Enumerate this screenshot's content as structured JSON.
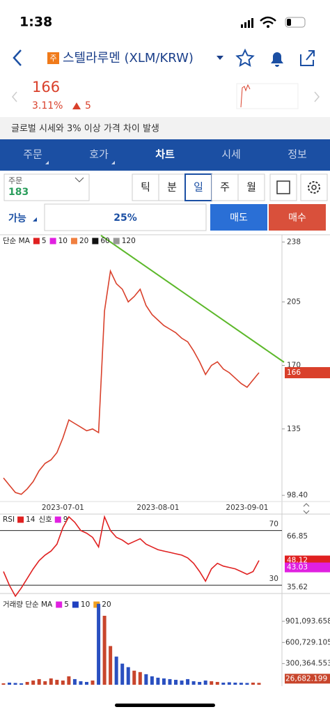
{
  "status": {
    "time": "1:38"
  },
  "header": {
    "badge": "주",
    "title": "스텔라루멘 (XLM/KRW)"
  },
  "quote": {
    "price": "166",
    "change_pct": "3.11%",
    "change": "5"
  },
  "notice": "글로벌 시세와 3% 이상 가격 차이 발생",
  "tabs": [
    "주문",
    "호가",
    "차트",
    "시세",
    "정보"
  ],
  "order_box": {
    "label": "주문",
    "value": "183"
  },
  "periods": [
    "틱",
    "분",
    "일",
    "주",
    "월"
  ],
  "trade_row": {
    "label": "가능",
    "ratio": "25%",
    "sell": "매도",
    "buy": "매수"
  },
  "chart_data": [
    {
      "type": "line",
      "legend_label": "단순 MA",
      "legend": [
        {
          "name": "5",
          "color": "#e02020"
        },
        {
          "name": "10",
          "color": "#e020e0"
        },
        {
          "name": "20",
          "color": "#f08040"
        },
        {
          "name": "60",
          "color": "#111111"
        },
        {
          "name": "120",
          "color": "#999999"
        }
      ],
      "categories": [
        null,
        null,
        null,
        null,
        null,
        null,
        null,
        null,
        null,
        null,
        "2023-07-01",
        null,
        null,
        null,
        null,
        null,
        null,
        null,
        null,
        null,
        null,
        null,
        null,
        null,
        null,
        null,
        "2023-08-01",
        null,
        null,
        null,
        null,
        null,
        null,
        null,
        null,
        null,
        null,
        null,
        null,
        null,
        null,
        "2023-09-01",
        null,
        null
      ],
      "values": [
        108,
        104,
        100,
        99,
        102,
        106,
        112,
        116,
        118,
        122,
        130,
        140,
        138,
        136,
        134,
        135,
        133,
        200,
        222,
        215,
        212,
        205,
        208,
        212,
        203,
        198,
        195,
        192,
        190,
        188,
        185,
        183,
        178,
        172,
        165,
        170,
        172,
        168,
        166,
        163,
        160,
        158,
        162,
        166
      ],
      "color": "#d9402b",
      "last_color": "#d9402b",
      "ylim": [
        95,
        242
      ],
      "yticks": [
        238,
        205,
        170,
        135,
        {
          "value": 98.4,
          "label": "98.40"
        }
      ]
    },
    {
      "type": "line",
      "legend": [
        {
          "prefix": "RSI",
          "name": "14",
          "color": "#e02020"
        },
        {
          "prefix": "신호",
          "name": "9",
          "color": "#e020e0"
        }
      ],
      "values": [
        40,
        30,
        22,
        28,
        35,
        42,
        48,
        52,
        55,
        60,
        72,
        80,
        76,
        70,
        68,
        65,
        58,
        80,
        70,
        65,
        63,
        60,
        62,
        64,
        60,
        58,
        56,
        55,
        54,
        53,
        52,
        50,
        46,
        40,
        33,
        42,
        46,
        44,
        43,
        42,
        40,
        38,
        40,
        48.12
      ],
      "color": "#e02020",
      "signal_last": 43.03,
      "signal_color": "#e020e0",
      "stats": [
        "66.85",
        "35.62"
      ],
      "ylim": [
        25,
        82
      ],
      "yticks": [
        30,
        70
      ]
    },
    {
      "type": "bar",
      "legend_label": "거래량 단순 MA",
      "legend": [
        {
          "name": "5",
          "color": "#e020e0"
        },
        {
          "name": "10",
          "color": "#2040c0"
        },
        {
          "name": "20",
          "color": "#f0a020"
        }
      ],
      "values": [
        20000,
        30000,
        25000,
        20000,
        40000,
        60000,
        80000,
        50000,
        90000,
        70000,
        60000,
        120000,
        80000,
        50000,
        40000,
        60000,
        1150000,
        980000,
        550000,
        400000,
        300000,
        250000,
        200000,
        180000,
        150000,
        120000,
        100000,
        90000,
        80000,
        70000,
        60000,
        80000,
        50000,
        40000,
        60000,
        50000,
        40000,
        30000,
        35000,
        30000,
        28000,
        25000,
        30000,
        26682.199
      ],
      "up_color": "#c8452c",
      "down_color": "#2a50c0",
      "last_label": "26,682.199",
      "ylim": [
        0,
        1267000
      ],
      "yticks": [
        {
          "value": 901093.658,
          "label": "901,093.658"
        },
        {
          "value": 600729.105,
          "label": "600,729.105"
        },
        {
          "value": 300364.553,
          "label": "300,364.553"
        }
      ]
    }
  ]
}
